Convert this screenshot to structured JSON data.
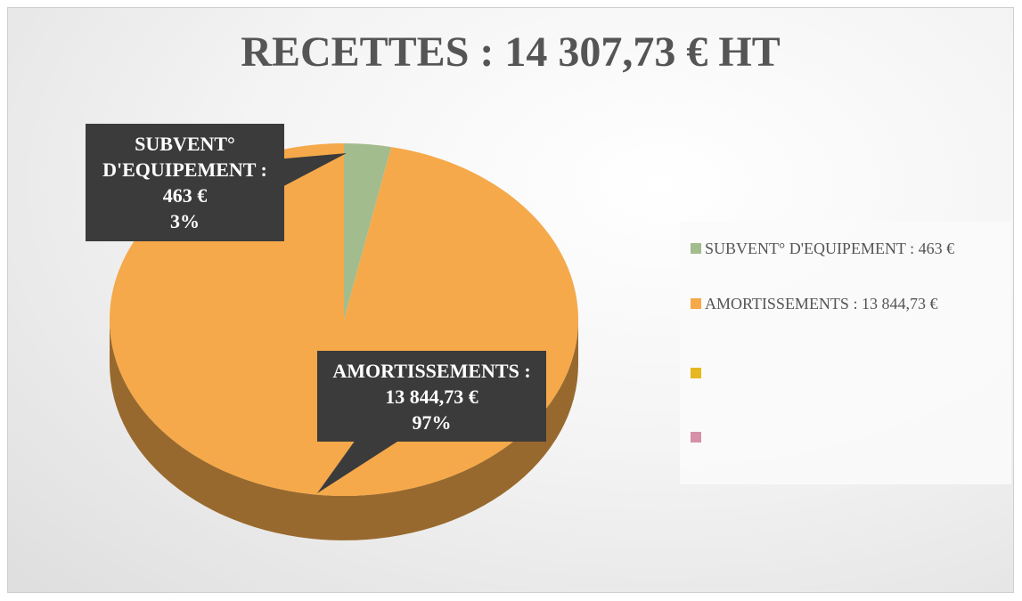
{
  "chart_data": {
    "type": "pie",
    "title": "RECETTES : 14 307,73 € HT",
    "categories": [
      "SUBVENT° D'EQUIPEMENT : 463 €",
      "AMORTISSEMENTS : 13 844,73 €",
      null,
      null
    ],
    "values": [
      463,
      13844.73,
      null,
      null
    ],
    "value_labels": [
      "3%",
      "97%",
      null,
      null
    ],
    "colors": [
      "#a3bc8e",
      "#f5a94a",
      "#e6b820",
      "#d690a8"
    ],
    "legend": "right",
    "three_d": true
  }
}
